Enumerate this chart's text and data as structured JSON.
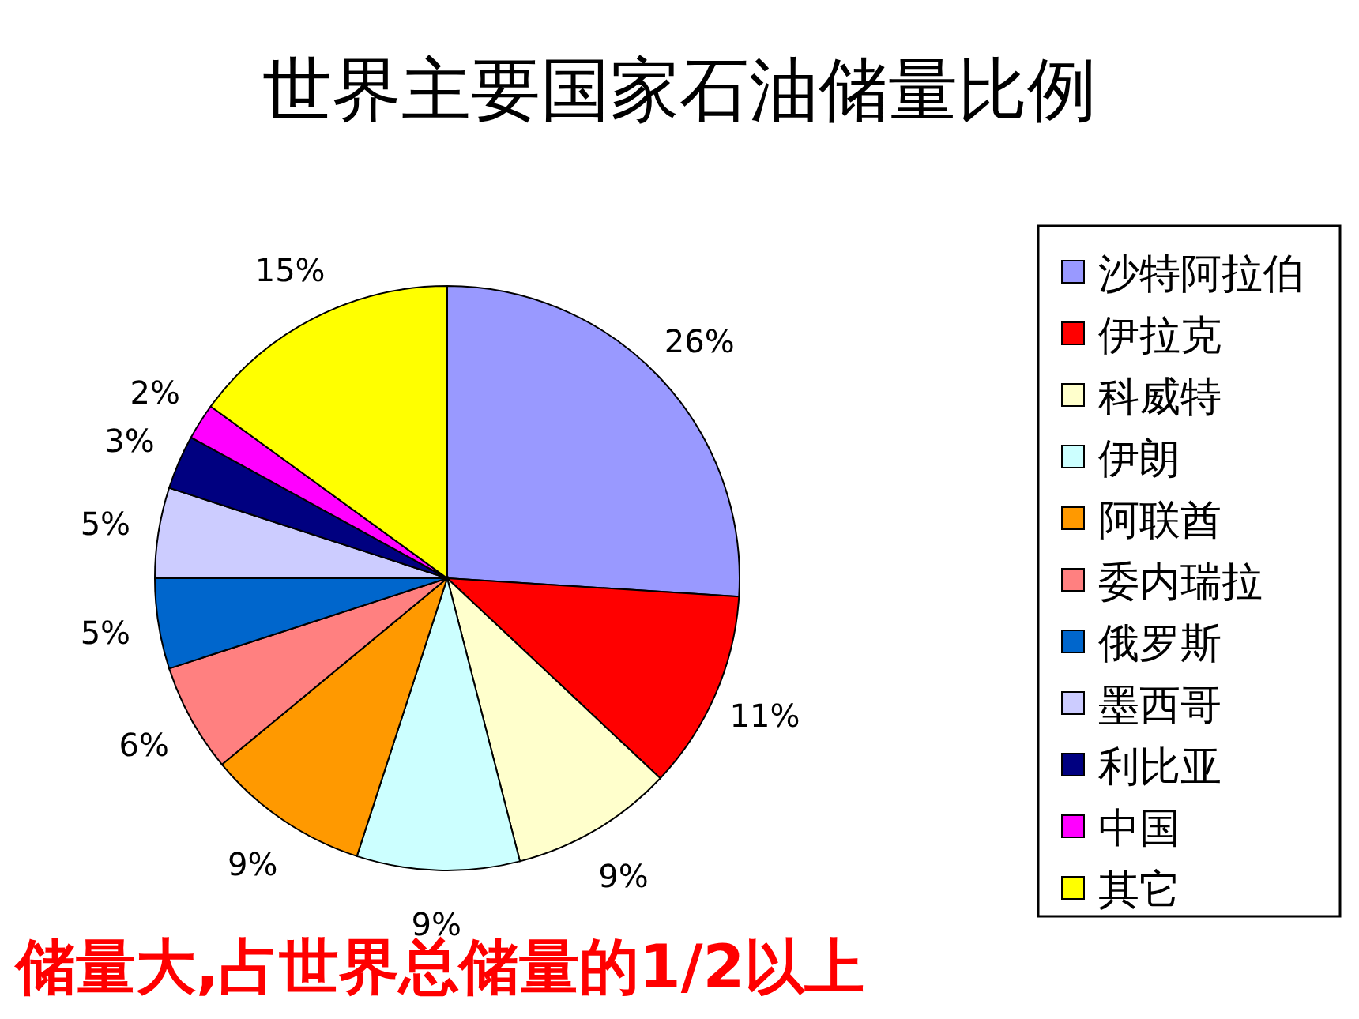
{
  "chart_data": {
    "type": "pie",
    "title": "世界主要国家石油储量比例",
    "categories": [
      "沙特阿拉伯",
      "伊拉克",
      "科威特",
      "伊朗",
      "阿联酋",
      "委内瑞拉",
      "俄罗斯",
      "墨西哥",
      "利比亚",
      "中国",
      "其它"
    ],
    "values": [
      26,
      11,
      9,
      9,
      9,
      6,
      5,
      5,
      3,
      2,
      15
    ],
    "value_labels": [
      "26%",
      "11%",
      "9%",
      "9%",
      "9%",
      "6%",
      "5%",
      "5%",
      "3%",
      "2%",
      "15%"
    ],
    "colors": [
      "#9999ff",
      "#ff0000",
      "#ffffcc",
      "#ccffff",
      "#ff9900",
      "#ff8080",
      "#0066cc",
      "#ccccff",
      "#000080",
      "#ff00ff",
      "#ffff00"
    ],
    "legend": "right",
    "annotations": [
      "储量大,占世界总储量的1/2以上"
    ]
  }
}
